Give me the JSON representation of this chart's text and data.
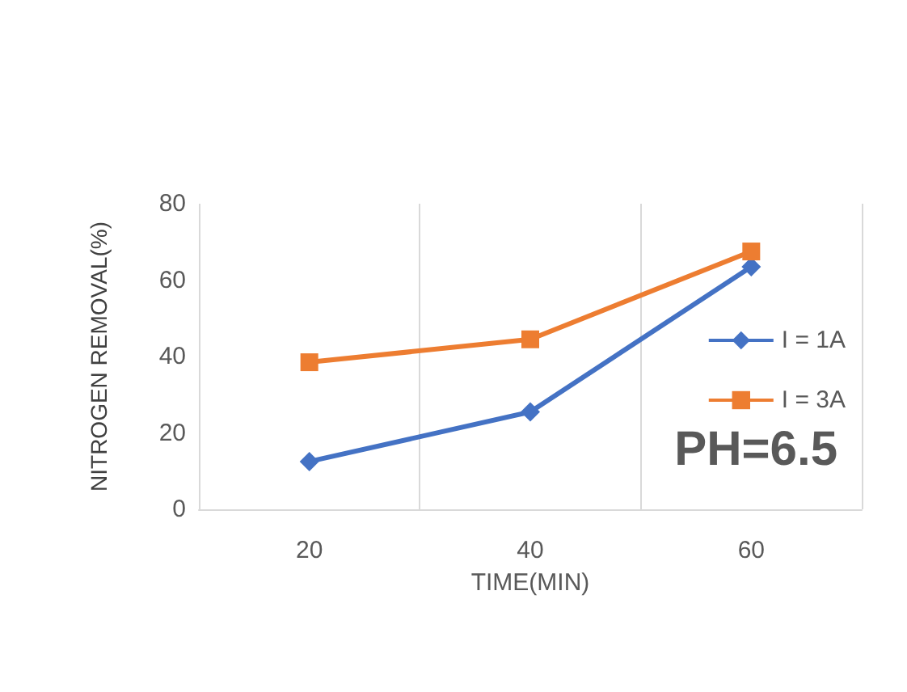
{
  "chart_data": {
    "type": "line",
    "xlabel": "TIME(MIN)",
    "ylabel": "NITROGEN REMOVAL(%)",
    "categories": [
      "20",
      "40",
      "60"
    ],
    "series": [
      {
        "name": "I = 1A",
        "color": "#4472c4",
        "values": [
          12.5,
          25.5,
          63.5
        ],
        "marker": "diamond"
      },
      {
        "name": "I = 3A",
        "color": "#ed7d31",
        "values": [
          38.5,
          44.5,
          67.5
        ],
        "marker": "square"
      }
    ],
    "ylim": [
      0,
      80
    ],
    "yticks": [
      0,
      20,
      40,
      60,
      80
    ],
    "grid": "x",
    "legend": "right",
    "annotations": [
      "PH=6.5"
    ]
  }
}
